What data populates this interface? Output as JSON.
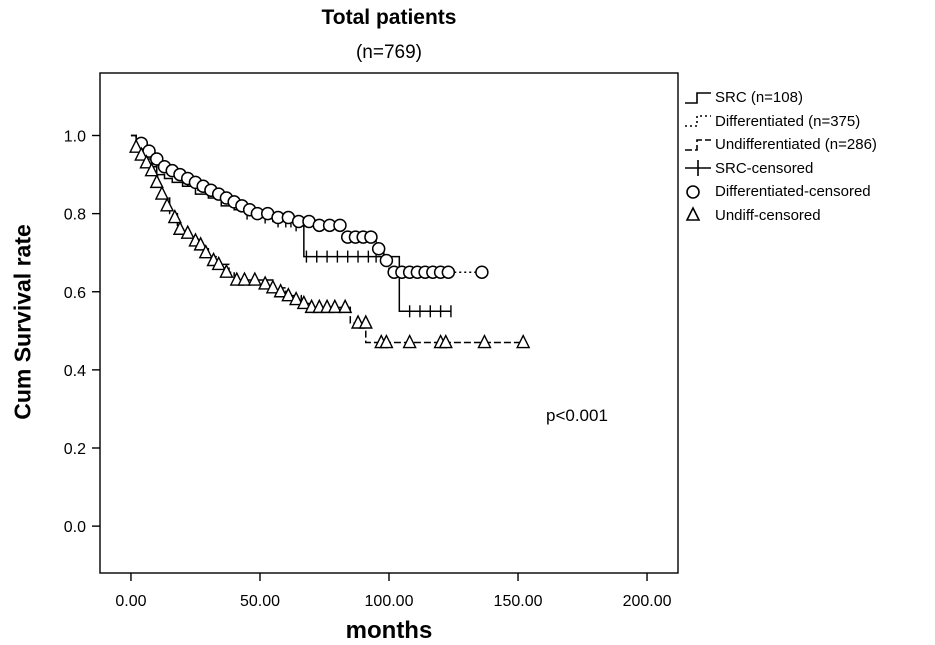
{
  "chart_data": {
    "type": "line",
    "title": "Total patients",
    "subtitle": "(n=769)",
    "xlabel": "months",
    "ylabel": "Cum Survival rate",
    "xlim": [
      -12,
      212
    ],
    "ylim": [
      -0.12,
      1.16
    ],
    "xticks": [
      0,
      50,
      100,
      150,
      200
    ],
    "xtick_labels": [
      "0.00",
      "50.00",
      "100.00",
      "150.00",
      "200.00"
    ],
    "yticks": [
      0.0,
      0.2,
      0.4,
      0.6,
      0.8,
      1.0
    ],
    "ytick_labels": [
      "0.0",
      "0.2",
      "0.4",
      "0.6",
      "0.8",
      "1.0"
    ],
    "grid": false,
    "legend_position": "outside-right",
    "annotation": "p<0.001",
    "series": [
      {
        "name": "SRC (n=108)",
        "dash": "solid",
        "censored_marker": "plus",
        "steps": [
          [
            0,
            1.0
          ],
          [
            2,
            0.98
          ],
          [
            4,
            0.96
          ],
          [
            6,
            0.94
          ],
          [
            8,
            0.92
          ],
          [
            10,
            0.9
          ],
          [
            13,
            0.89
          ],
          [
            16,
            0.88
          ],
          [
            20,
            0.87
          ],
          [
            25,
            0.85
          ],
          [
            30,
            0.84
          ],
          [
            35,
            0.82
          ],
          [
            40,
            0.81
          ],
          [
            45,
            0.8
          ],
          [
            50,
            0.79
          ],
          [
            55,
            0.78
          ],
          [
            60,
            0.78
          ],
          [
            66,
            0.77
          ],
          [
            67,
            0.69
          ],
          [
            104,
            0.69
          ],
          [
            104,
            0.55
          ],
          [
            124,
            0.55
          ]
        ],
        "censored": [
          [
            45,
            0.8
          ],
          [
            52,
            0.79
          ],
          [
            57,
            0.78
          ],
          [
            60,
            0.78
          ],
          [
            62,
            0.78
          ],
          [
            64,
            0.77
          ],
          [
            68,
            0.69
          ],
          [
            72,
            0.69
          ],
          [
            76,
            0.69
          ],
          [
            80,
            0.69
          ],
          [
            84,
            0.69
          ],
          [
            88,
            0.69
          ],
          [
            92,
            0.69
          ],
          [
            95,
            0.69
          ],
          [
            98,
            0.69
          ],
          [
            108,
            0.55
          ],
          [
            112,
            0.55
          ],
          [
            116,
            0.55
          ],
          [
            120,
            0.55
          ],
          [
            124,
            0.55
          ]
        ]
      },
      {
        "name": "Differentiated (n=375)",
        "dash": "dotted",
        "censored_marker": "circle",
        "steps": [
          [
            0,
            1.0
          ],
          [
            2,
            0.98
          ],
          [
            4,
            0.97
          ],
          [
            6,
            0.95
          ],
          [
            8,
            0.94
          ],
          [
            10,
            0.92
          ],
          [
            14,
            0.91
          ],
          [
            18,
            0.89
          ],
          [
            22,
            0.87
          ],
          [
            26,
            0.86
          ],
          [
            30,
            0.85
          ],
          [
            35,
            0.83
          ],
          [
            40,
            0.82
          ],
          [
            45,
            0.81
          ],
          [
            50,
            0.8
          ],
          [
            60,
            0.79
          ],
          [
            70,
            0.78
          ],
          [
            82,
            0.77
          ],
          [
            82,
            0.74
          ],
          [
            95,
            0.74
          ],
          [
            95,
            0.71
          ],
          [
            98,
            0.71
          ],
          [
            98,
            0.68
          ],
          [
            100,
            0.68
          ],
          [
            100,
            0.65
          ],
          [
            136,
            0.65
          ]
        ],
        "censored": [
          [
            4,
            0.98
          ],
          [
            7,
            0.96
          ],
          [
            10,
            0.94
          ],
          [
            13,
            0.92
          ],
          [
            16,
            0.91
          ],
          [
            19,
            0.9
          ],
          [
            22,
            0.89
          ],
          [
            25,
            0.88
          ],
          [
            28,
            0.87
          ],
          [
            31,
            0.86
          ],
          [
            34,
            0.85
          ],
          [
            37,
            0.84
          ],
          [
            40,
            0.83
          ],
          [
            43,
            0.82
          ],
          [
            46,
            0.81
          ],
          [
            49,
            0.8
          ],
          [
            53,
            0.8
          ],
          [
            57,
            0.79
          ],
          [
            61,
            0.79
          ],
          [
            65,
            0.78
          ],
          [
            69,
            0.78
          ],
          [
            73,
            0.77
          ],
          [
            77,
            0.77
          ],
          [
            81,
            0.77
          ],
          [
            84,
            0.74
          ],
          [
            87,
            0.74
          ],
          [
            90,
            0.74
          ],
          [
            93,
            0.74
          ],
          [
            96,
            0.71
          ],
          [
            99,
            0.68
          ],
          [
            102,
            0.65
          ],
          [
            105,
            0.65
          ],
          [
            108,
            0.65
          ],
          [
            111,
            0.65
          ],
          [
            114,
            0.65
          ],
          [
            117,
            0.65
          ],
          [
            120,
            0.65
          ],
          [
            123,
            0.65
          ],
          [
            136,
            0.65
          ]
        ]
      },
      {
        "name": "Undifferentiated (n=286)",
        "dash": "dashed",
        "censored_marker": "triangle",
        "steps": [
          [
            0,
            1.0
          ],
          [
            2,
            0.96
          ],
          [
            4,
            0.94
          ],
          [
            6,
            0.92
          ],
          [
            8,
            0.9
          ],
          [
            10,
            0.87
          ],
          [
            12,
            0.84
          ],
          [
            15,
            0.8
          ],
          [
            18,
            0.76
          ],
          [
            22,
            0.74
          ],
          [
            26,
            0.71
          ],
          [
            30,
            0.69
          ],
          [
            34,
            0.67
          ],
          [
            38,
            0.65
          ],
          [
            40,
            0.63
          ],
          [
            50,
            0.63
          ],
          [
            55,
            0.61
          ],
          [
            60,
            0.59
          ],
          [
            66,
            0.57
          ],
          [
            70,
            0.56
          ],
          [
            85,
            0.56
          ],
          [
            85,
            0.52
          ],
          [
            91,
            0.52
          ],
          [
            91,
            0.47
          ],
          [
            152,
            0.47
          ]
        ],
        "censored": [
          [
            2,
            0.97
          ],
          [
            4,
            0.95
          ],
          [
            6,
            0.93
          ],
          [
            8,
            0.91
          ],
          [
            10,
            0.88
          ],
          [
            12,
            0.85
          ],
          [
            14,
            0.82
          ],
          [
            17,
            0.79
          ],
          [
            19,
            0.76
          ],
          [
            22,
            0.75
          ],
          [
            25,
            0.73
          ],
          [
            27,
            0.72
          ],
          [
            29,
            0.7
          ],
          [
            32,
            0.68
          ],
          [
            34,
            0.67
          ],
          [
            37,
            0.65
          ],
          [
            41,
            0.63
          ],
          [
            44,
            0.63
          ],
          [
            48,
            0.63
          ],
          [
            52,
            0.62
          ],
          [
            55,
            0.61
          ],
          [
            58,
            0.6
          ],
          [
            61,
            0.59
          ],
          [
            64,
            0.58
          ],
          [
            67,
            0.57
          ],
          [
            70,
            0.56
          ],
          [
            73,
            0.56
          ],
          [
            76,
            0.56
          ],
          [
            79,
            0.56
          ],
          [
            83,
            0.56
          ],
          [
            88,
            0.52
          ],
          [
            91,
            0.52
          ],
          [
            97,
            0.47
          ],
          [
            99,
            0.47
          ],
          [
            108,
            0.47
          ],
          [
            120,
            0.47
          ],
          [
            122,
            0.47
          ],
          [
            137,
            0.47
          ],
          [
            152,
            0.47
          ]
        ]
      }
    ],
    "legend": [
      {
        "label": "SRC (n=108)",
        "symbol": "step-solid"
      },
      {
        "label": "Differentiated (n=375)",
        "symbol": "step-dotted"
      },
      {
        "label": "Undifferentiated (n=286)",
        "symbol": "step-dashed"
      },
      {
        "label": "SRC-censored",
        "symbol": "plus"
      },
      {
        "label": "Differentiated-censored",
        "symbol": "circle"
      },
      {
        "label": "Undiff-censored",
        "symbol": "triangle"
      }
    ]
  }
}
